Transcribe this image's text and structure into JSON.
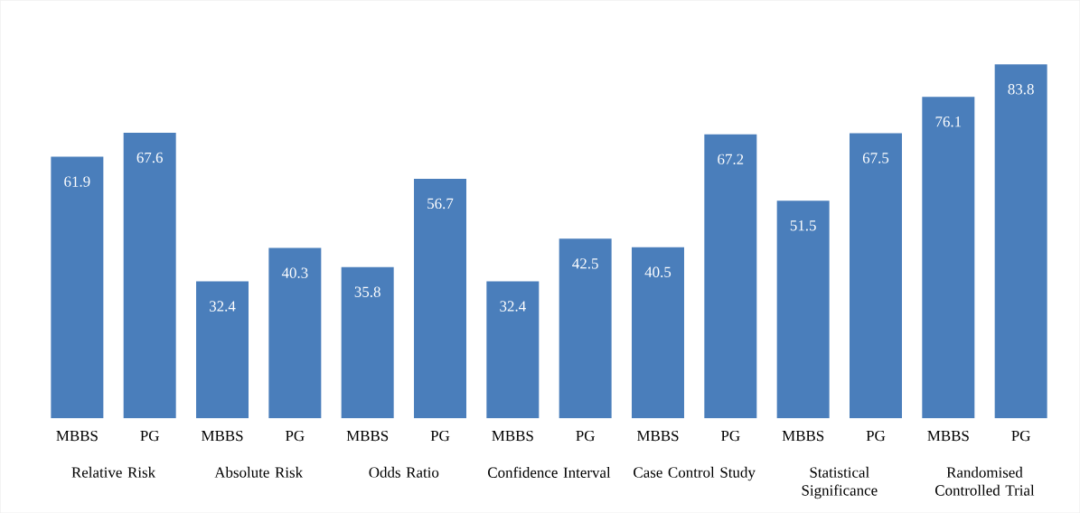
{
  "chart_data": {
    "type": "bar",
    "categories": [
      "MBBS",
      "PG",
      "MBBS",
      "PG",
      "MBBS",
      "PG",
      "MBBS",
      "PG",
      "MBBS",
      "PG",
      "MBBS",
      "PG",
      "MBBS",
      "PG"
    ],
    "values": [
      61.9,
      67.6,
      32.4,
      40.3,
      35.8,
      56.7,
      32.4,
      42.5,
      40.5,
      67.2,
      51.5,
      67.5,
      76.1,
      83.8
    ],
    "color": "#4a7ebb",
    "data_labels": true,
    "annotations": [
      "Relative Risk",
      "Absolute Risk",
      "Odds Ratio",
      "Confidence Interval",
      "Case Control Study",
      "Statistical Significance",
      "Randomised Controlled Trial"
    ]
  }
}
